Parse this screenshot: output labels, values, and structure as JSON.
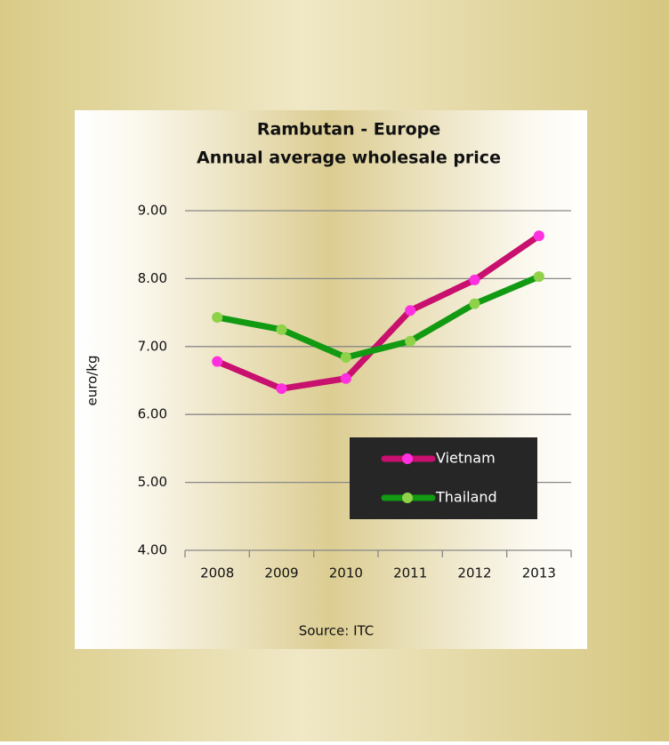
{
  "chart_data": {
    "type": "line",
    "title": "Rambutan - Europe",
    "subtitle": "Annual average wholesale price",
    "ylabel": "euro/kg",
    "source": "Source: ITC",
    "categories": [
      "2008",
      "2009",
      "2010",
      "2011",
      "2012",
      "2013"
    ],
    "series": [
      {
        "name": "Vietnam",
        "color": "#c8106e",
        "marker_color": "#ff30e0",
        "values": [
          6.78,
          6.38,
          6.53,
          7.53,
          7.98,
          8.63
        ]
      },
      {
        "name": "Thailand",
        "color": "#129a12",
        "marker_color": "#8fd24a",
        "values": [
          7.43,
          7.25,
          6.84,
          7.08,
          7.63,
          8.03
        ]
      }
    ],
    "ylim": [
      4,
      9
    ],
    "yticks": [
      {
        "value": 4,
        "label": "4.00"
      },
      {
        "value": 5,
        "label": "5.00"
      },
      {
        "value": 6,
        "label": "6.00"
      },
      {
        "value": 7,
        "label": "7.00"
      },
      {
        "value": 8,
        "label": "8.00"
      },
      {
        "value": 9,
        "label": "9.00"
      }
    ],
    "grid": true,
    "legend": "lower right"
  }
}
